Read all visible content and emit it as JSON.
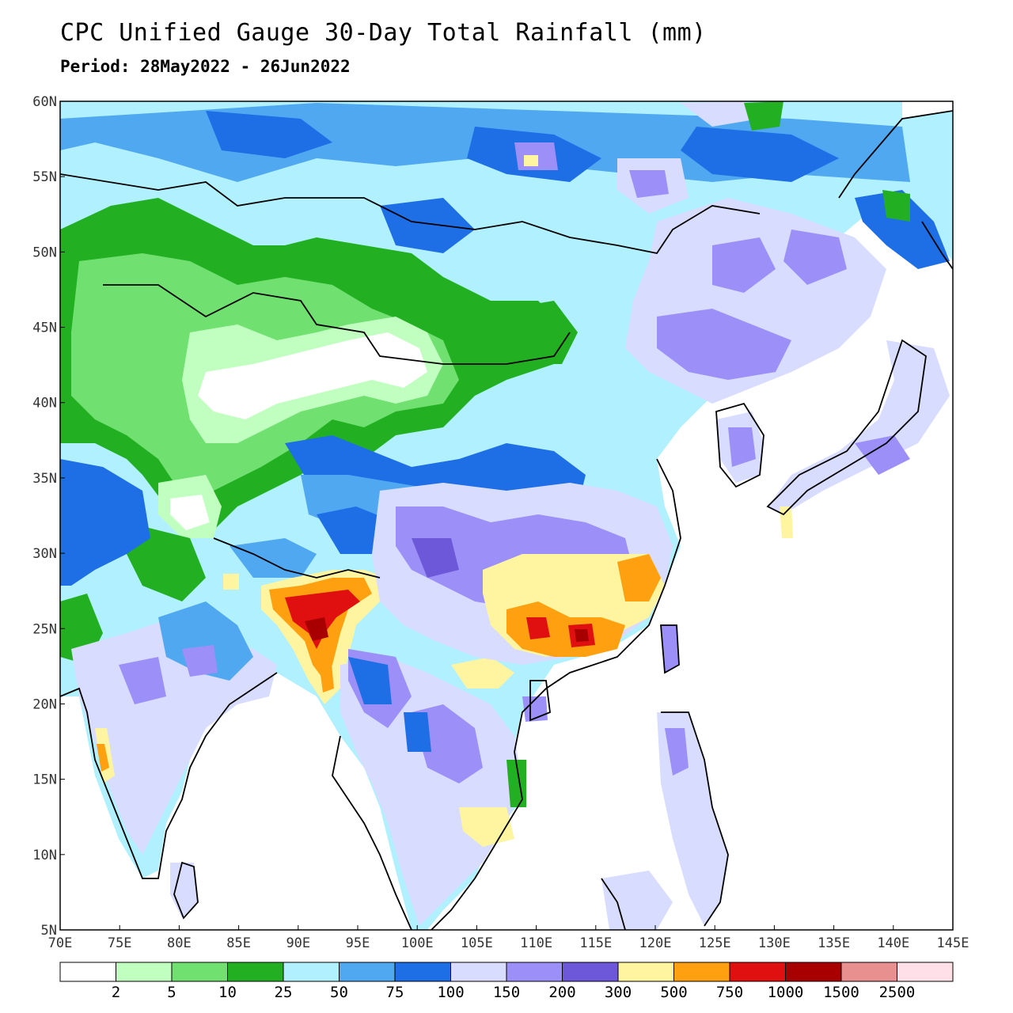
{
  "title": "CPC Unified Gauge 30-Day Total Rainfall (mm)",
  "subtitle": "Period: 28May2022 - 26Jun2022",
  "map": {
    "lon_range": [
      70,
      145
    ],
    "lat_range": [
      5,
      60
    ],
    "lon_ticks": [
      "70E",
      "75E",
      "80E",
      "85E",
      "90E",
      "95E",
      "100E",
      "105E",
      "110E",
      "115E",
      "120E",
      "125E",
      "130E",
      "135E",
      "140E",
      "145E"
    ],
    "lat_ticks": [
      "60N",
      "55N",
      "50N",
      "45N",
      "40N",
      "35N",
      "30N",
      "25N",
      "20N",
      "15N",
      "10N",
      "5N"
    ]
  },
  "legend": {
    "labels": [
      "2",
      "5",
      "10",
      "25",
      "50",
      "75",
      "100",
      "150",
      "200",
      "300",
      "500",
      "750",
      "1000",
      "1500",
      "2500"
    ],
    "colors": [
      "#ffffff",
      "#c0ffc0",
      "#70e070",
      "#22b022",
      "#b0f0ff",
      "#50a8f0",
      "#1e6ee6",
      "#d8dcff",
      "#9c90f8",
      "#6c58d8",
      "#fff4a0",
      "#ffa010",
      "#e01010",
      "#a80000",
      "#e89090",
      "#ffe0e8"
    ]
  }
}
